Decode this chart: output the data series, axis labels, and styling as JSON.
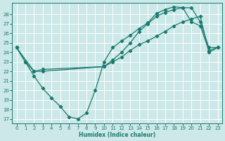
{
  "xlabel": "Humidex (Indice chaleur)",
  "bg_color": "#cce8e8",
  "line_color": "#1a7a6e",
  "xlim": [
    -0.5,
    23.5
  ],
  "ylim": [
    16.5,
    29.2
  ],
  "yticks": [
    17,
    18,
    19,
    20,
    21,
    22,
    23,
    24,
    25,
    26,
    27,
    28
  ],
  "xticks": [
    0,
    1,
    2,
    3,
    4,
    5,
    6,
    7,
    8,
    9,
    10,
    11,
    12,
    13,
    14,
    15,
    16,
    17,
    18,
    19,
    20,
    21,
    22,
    23
  ],
  "line1_x": [
    0,
    1,
    2,
    3,
    4,
    5,
    6,
    7,
    8,
    9,
    10,
    11,
    12,
    13,
    14,
    15,
    16,
    17,
    18,
    19,
    20,
    21,
    22,
    23
  ],
  "line1_y": [
    24.5,
    23.0,
    21.5,
    20.2,
    19.2,
    18.3,
    17.2,
    17.0,
    17.6,
    20.0,
    23.0,
    24.5,
    25.2,
    25.8,
    26.5,
    27.1,
    28.1,
    28.5,
    28.8,
    28.7,
    27.2,
    26.8,
    24.2,
    24.5
  ],
  "line2_x": [
    0,
    2,
    3,
    10,
    11,
    12,
    13,
    14,
    15,
    16,
    17,
    18,
    19,
    20,
    21,
    22,
    23
  ],
  "line2_y": [
    24.5,
    22.0,
    22.2,
    22.5,
    23.0,
    23.5,
    24.2,
    24.8,
    25.2,
    25.7,
    26.2,
    26.8,
    27.2,
    27.5,
    27.8,
    24.0,
    24.5
  ],
  "line3_x": [
    0,
    1,
    2,
    3,
    10,
    11,
    12,
    13,
    14,
    15,
    16,
    17,
    18,
    19,
    20,
    21,
    22,
    23
  ],
  "line3_y": [
    24.5,
    23.0,
    22.0,
    22.0,
    22.5,
    23.2,
    24.0,
    25.0,
    26.2,
    27.0,
    27.8,
    28.2,
    28.5,
    28.7,
    28.7,
    27.2,
    24.5,
    24.5
  ]
}
